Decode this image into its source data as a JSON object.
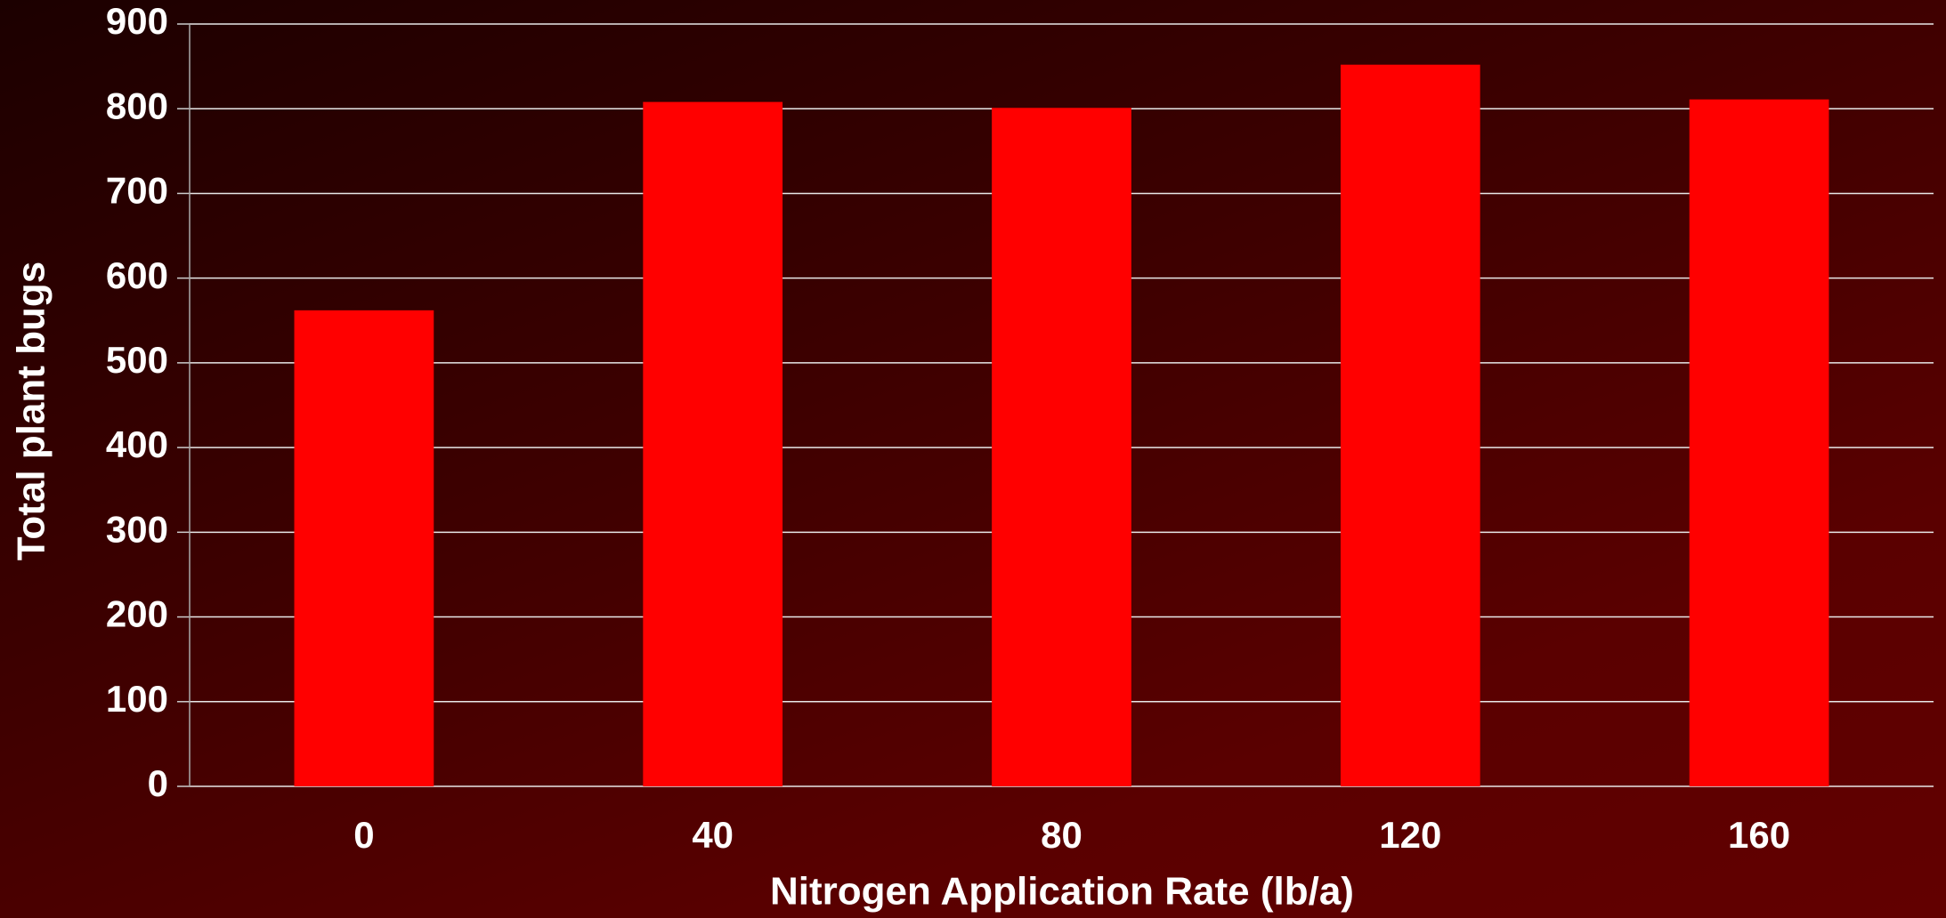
{
  "chart_data": {
    "type": "bar",
    "categories": [
      "0",
      "40",
      "80",
      "120",
      "160"
    ],
    "values": [
      562,
      808,
      801,
      852,
      811
    ],
    "color": "#ff0000",
    "x_label": "Nitrogen Application Rate (lb/a)",
    "y_label": "Total plant bugs",
    "ylim": [
      0,
      900
    ],
    "yticks": [
      0,
      100,
      200,
      300,
      400,
      500,
      600,
      700,
      800,
      900
    ],
    "grid": true
  }
}
